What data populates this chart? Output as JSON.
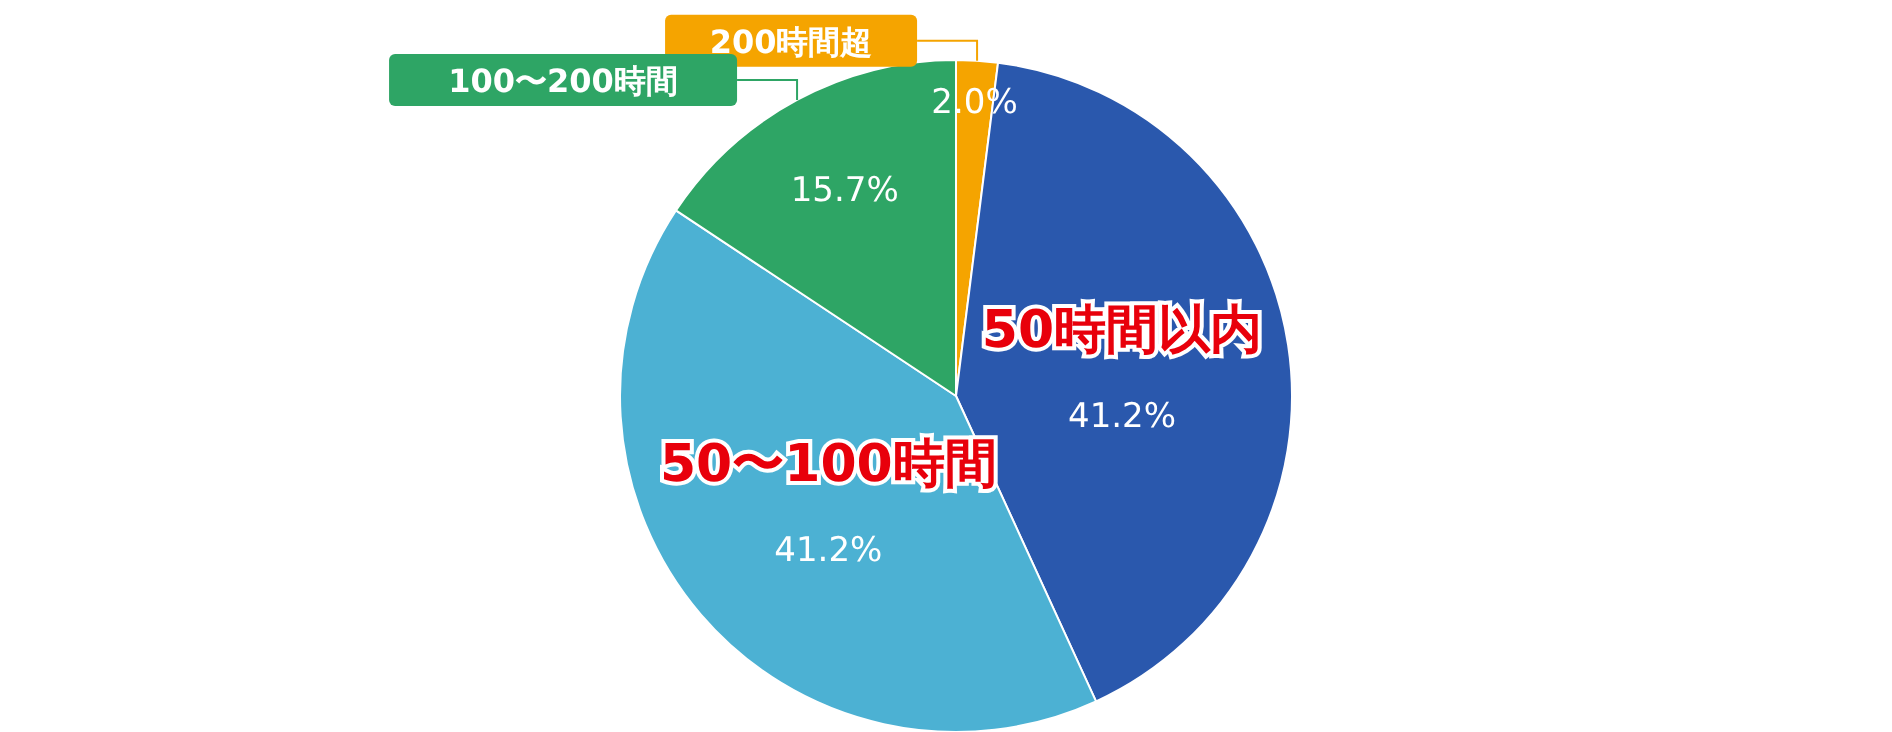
{
  "chart_data": {
    "type": "pie",
    "categories": [
      "200時間超",
      "50時間以内",
      "50〜100時間",
      "100〜200時間"
    ],
    "values": [
      2.0,
      41.2,
      41.2,
      15.7
    ],
    "colors": [
      "#f5a400",
      "#2a58ad",
      "#4cb1d3",
      "#2ea565"
    ],
    "value_labels": [
      "2.0%",
      "41.2%",
      "41.2%",
      "15.7%"
    ],
    "data_labels": true
  }
}
